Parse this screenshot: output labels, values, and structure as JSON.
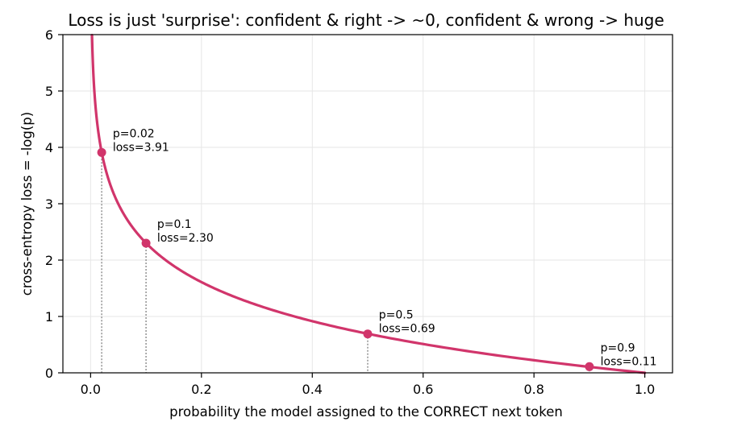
{
  "chart_data": {
    "type": "line",
    "title": "Loss is just 'surprise': confident & right -> ~0,  confident & wrong -> huge",
    "xlabel": "probability the model assigned to the CORRECT next token",
    "ylabel": "cross-entropy loss  =  -log(p)",
    "xlim": [
      -0.05,
      1.05
    ],
    "ylim": [
      0,
      6
    ],
    "x_ticks": [
      0.0,
      0.2,
      0.4,
      0.6,
      0.8,
      1.0
    ],
    "x_tick_labels": [
      "0.0",
      "0.2",
      "0.4",
      "0.6",
      "0.8",
      "1.0"
    ],
    "y_ticks": [
      0,
      1,
      2,
      3,
      4,
      5,
      6
    ],
    "y_tick_labels": [
      "0",
      "1",
      "2",
      "3",
      "4",
      "5",
      "6"
    ],
    "grid": true,
    "curve": {
      "function": "-log(p)",
      "x_range": [
        0.0025,
        1.0
      ],
      "color": "#d1356b"
    },
    "points": [
      {
        "x": 0.02,
        "y": 3.91,
        "label_p": "p=0.02",
        "label_loss": "loss=3.91"
      },
      {
        "x": 0.1,
        "y": 2.3,
        "label_p": "p=0.1",
        "label_loss": "loss=2.30"
      },
      {
        "x": 0.5,
        "y": 0.69,
        "label_p": "p=0.5",
        "label_loss": "loss=0.69"
      },
      {
        "x": 0.9,
        "y": 0.11,
        "label_p": "p=0.9",
        "label_loss": "loss=0.11"
      }
    ],
    "colors": {
      "curve": "#d1356b",
      "point": "#d1356b",
      "dropline": "#808080",
      "grid": "#e6e6e6"
    }
  }
}
